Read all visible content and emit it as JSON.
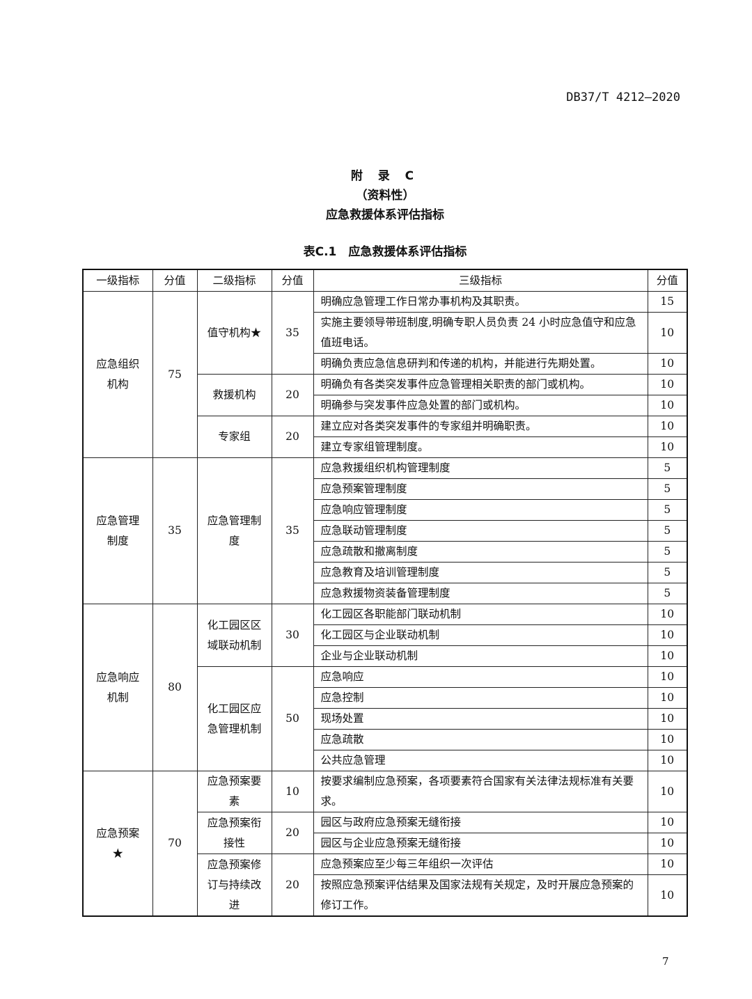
{
  "header": {
    "standard": "DB37/T 4212—2020"
  },
  "title": {
    "appendix": "附 录 C",
    "type": "（资料性）",
    "name": "应急救援体系评估指标",
    "caption": "表C.1　应急救援体系评估指标"
  },
  "table": {
    "columns": [
      "一级指标",
      "分值",
      "二级指标",
      "分值",
      "三级指标",
      "分值"
    ],
    "groups": [
      {
        "label": "应急组织机构",
        "score": "75",
        "subs": [
          {
            "label": "值守机构★",
            "score": "35",
            "items": [
              {
                "text": "明确应急管理工作日常办事机构及其职责。",
                "score": "15"
              },
              {
                "text": "实施主要领导带班制度,明确专职人员负责 24 小时应急值守和应急值班电话。",
                "score": "10"
              },
              {
                "text": "明确负责应急信息研判和传递的机构，并能进行先期处置。",
                "score": "10"
              }
            ]
          },
          {
            "label": "救援机构",
            "score": "20",
            "items": [
              {
                "text": "明确负有各类突发事件应急管理相关职责的部门或机构。",
                "score": "10"
              },
              {
                "text": "明确参与突发事件应急处置的部门或机构。",
                "score": "10"
              }
            ]
          },
          {
            "label": "专家组",
            "score": "20",
            "items": [
              {
                "text": "建立应对各类突发事件的专家组并明确职责。",
                "score": "10"
              },
              {
                "text": "建立专家组管理制度。",
                "score": "10"
              }
            ]
          }
        ]
      },
      {
        "label": "应急管理制度",
        "score": "35",
        "subs": [
          {
            "label": "应急管理制度",
            "score": "35",
            "items": [
              {
                "text": "应急救援组织机构管理制度",
                "score": "5"
              },
              {
                "text": "应急预案管理制度",
                "score": "5"
              },
              {
                "text": "应急响应管理制度",
                "score": "5"
              },
              {
                "text": "应急联动管理制度",
                "score": "5"
              },
              {
                "text": "应急疏散和撤离制度",
                "score": "5"
              },
              {
                "text": "应急教育及培训管理制度",
                "score": "5"
              },
              {
                "text": "应急救援物资装备管理制度",
                "score": "5"
              }
            ]
          }
        ]
      },
      {
        "label": "应急响应机制",
        "score": "80",
        "subs": [
          {
            "label": "化工园区区域联动机制",
            "score": "30",
            "items": [
              {
                "text": "化工园区各职能部门联动机制",
                "score": "10"
              },
              {
                "text": "化工园区与企业联动机制",
                "score": "10"
              },
              {
                "text": "企业与企业联动机制",
                "score": "10"
              }
            ]
          },
          {
            "label": "化工园区应急管理机制",
            "score": "50",
            "items": [
              {
                "text": "应急响应",
                "score": "10"
              },
              {
                "text": "应急控制",
                "score": "10"
              },
              {
                "text": "现场处置",
                "score": "10"
              },
              {
                "text": "应急疏散",
                "score": "10"
              },
              {
                "text": "公共应急管理",
                "score": "10"
              }
            ]
          }
        ]
      },
      {
        "label": "应急预案★",
        "score": "70",
        "subs": [
          {
            "label": "应急预案要素",
            "score": "10",
            "items": [
              {
                "text": "按要求编制应急预案，各项要素符合国家有关法律法规标准有关要求。",
                "score": "10"
              }
            ]
          },
          {
            "label": "应急预案衔接性",
            "score": "20",
            "items": [
              {
                "text": "园区与政府应急预案无缝衔接",
                "score": "10"
              },
              {
                "text": "园区与企业应急预案无缝衔接",
                "score": "10"
              }
            ]
          },
          {
            "label": "应急预案修订与持续改进",
            "score": "20",
            "items": [
              {
                "text": "应急预案应至少每三年组织一次评估",
                "score": "10"
              },
              {
                "text": "按照应急预案评估结果及国家法规有关规定，及时开展应急预案的修订工作。",
                "score": "10"
              }
            ]
          }
        ]
      }
    ]
  },
  "page_number": "7"
}
